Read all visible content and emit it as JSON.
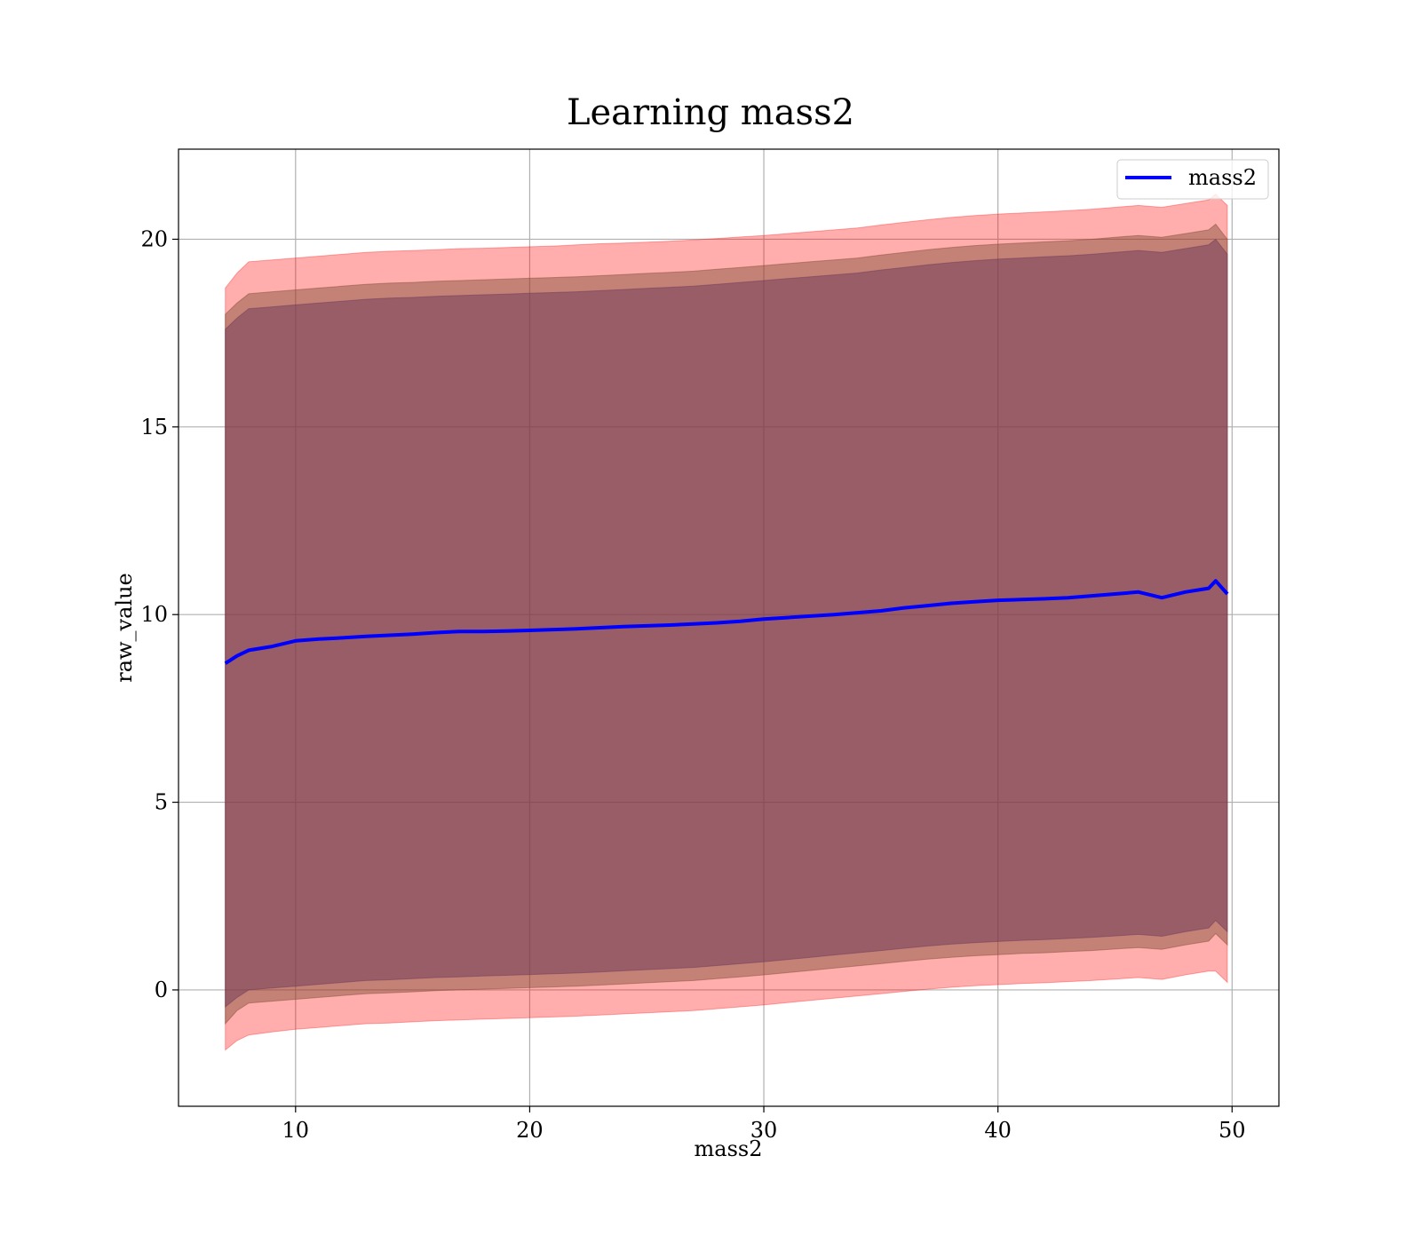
{
  "chart_data": {
    "type": "area",
    "title": "Learning mass2",
    "xlabel": "mass2",
    "ylabel": "raw_value",
    "xlim": [
      5,
      52
    ],
    "ylim": [
      -3.1,
      22.4
    ],
    "xticks": [
      10,
      20,
      30,
      40,
      50
    ],
    "yticks": [
      0,
      5,
      10,
      15,
      20
    ],
    "grid": true,
    "legend": {
      "position": "top-right",
      "entries": [
        "mass2"
      ]
    },
    "x": [
      7,
      7.5,
      8,
      9,
      10,
      11,
      12,
      13,
      14,
      15,
      16,
      17,
      18,
      19,
      20,
      21,
      22,
      23,
      24,
      25,
      26,
      27,
      28,
      29,
      30,
      31,
      32,
      33,
      34,
      35,
      36,
      37,
      38,
      39,
      40,
      41,
      42,
      43,
      44,
      45,
      46,
      47,
      48,
      49,
      49.3,
      49.8
    ],
    "series": [
      {
        "name": "mass2",
        "role": "line",
        "color": "#0000ff",
        "values": [
          8.7,
          8.9,
          9.05,
          9.15,
          9.3,
          9.35,
          9.38,
          9.42,
          9.45,
          9.48,
          9.52,
          9.55,
          9.55,
          9.56,
          9.58,
          9.6,
          9.62,
          9.65,
          9.68,
          9.7,
          9.72,
          9.75,
          9.78,
          9.82,
          9.88,
          9.92,
          9.96,
          10.0,
          10.05,
          10.1,
          10.18,
          10.24,
          10.3,
          10.34,
          10.38,
          10.4,
          10.42,
          10.45,
          10.5,
          10.55,
          10.6,
          10.45,
          10.6,
          10.7,
          10.9,
          10.55
        ]
      },
      {
        "role": "band",
        "color": "#ff0000",
        "opacity": 0.32,
        "upper": [
          18.7,
          19.1,
          19.4,
          19.45,
          19.5,
          19.55,
          19.6,
          19.65,
          19.68,
          19.7,
          19.72,
          19.75,
          19.76,
          19.78,
          19.8,
          19.82,
          19.85,
          19.88,
          19.9,
          19.92,
          19.95,
          19.98,
          20.02,
          20.06,
          20.1,
          20.15,
          20.2,
          20.25,
          20.3,
          20.38,
          20.45,
          20.52,
          20.58,
          20.63,
          20.67,
          20.7,
          20.73,
          20.76,
          20.8,
          20.85,
          20.9,
          20.85,
          20.95,
          21.05,
          21.2,
          20.9
        ],
        "lower": [
          -1.6,
          -1.35,
          -1.2,
          -1.12,
          -1.05,
          -1.0,
          -0.95,
          -0.9,
          -0.88,
          -0.85,
          -0.82,
          -0.8,
          -0.78,
          -0.76,
          -0.74,
          -0.72,
          -0.7,
          -0.67,
          -0.64,
          -0.61,
          -0.58,
          -0.55,
          -0.5,
          -0.45,
          -0.4,
          -0.34,
          -0.28,
          -0.22,
          -0.16,
          -0.1,
          -0.04,
          0.02,
          0.07,
          0.11,
          0.14,
          0.17,
          0.19,
          0.22,
          0.25,
          0.29,
          0.33,
          0.28,
          0.4,
          0.5,
          0.5,
          0.2
        ]
      },
      {
        "role": "band",
        "color": "#7d4c34",
        "opacity": 0.45,
        "upper": [
          18.0,
          18.3,
          18.55,
          18.6,
          18.65,
          18.7,
          18.75,
          18.8,
          18.83,
          18.85,
          18.88,
          18.9,
          18.92,
          18.94,
          18.96,
          18.98,
          19.0,
          19.03,
          19.06,
          19.09,
          19.12,
          19.15,
          19.2,
          19.25,
          19.3,
          19.35,
          19.4,
          19.45,
          19.5,
          19.58,
          19.65,
          19.72,
          19.78,
          19.83,
          19.87,
          19.9,
          19.93,
          19.96,
          20.0,
          20.05,
          20.1,
          20.05,
          20.15,
          20.25,
          20.4,
          20.0
        ],
        "lower": [
          -0.9,
          -0.55,
          -0.35,
          -0.3,
          -0.25,
          -0.2,
          -0.15,
          -0.1,
          -0.08,
          -0.05,
          -0.02,
          0.0,
          0.02,
          0.04,
          0.06,
          0.08,
          0.1,
          0.13,
          0.16,
          0.19,
          0.22,
          0.25,
          0.3,
          0.35,
          0.4,
          0.46,
          0.52,
          0.58,
          0.64,
          0.7,
          0.76,
          0.82,
          0.87,
          0.91,
          0.94,
          0.97,
          0.99,
          1.02,
          1.05,
          1.09,
          1.13,
          1.08,
          1.2,
          1.3,
          1.5,
          1.2
        ]
      },
      {
        "role": "band",
        "color": "#6e3a5a",
        "opacity": 0.5,
        "upper": [
          17.6,
          17.9,
          18.15,
          18.2,
          18.25,
          18.3,
          18.35,
          18.4,
          18.43,
          18.45,
          18.48,
          18.5,
          18.52,
          18.54,
          18.56,
          18.58,
          18.6,
          18.63,
          18.66,
          18.69,
          18.72,
          18.75,
          18.8,
          18.85,
          18.9,
          18.95,
          19.0,
          19.05,
          19.1,
          19.18,
          19.25,
          19.32,
          19.38,
          19.43,
          19.47,
          19.5,
          19.53,
          19.56,
          19.6,
          19.65,
          19.7,
          19.65,
          19.75,
          19.85,
          20.0,
          19.6
        ],
        "lower": [
          -0.45,
          -0.2,
          0.0,
          0.05,
          0.1,
          0.15,
          0.2,
          0.25,
          0.27,
          0.3,
          0.33,
          0.35,
          0.37,
          0.39,
          0.41,
          0.43,
          0.45,
          0.48,
          0.51,
          0.54,
          0.57,
          0.6,
          0.65,
          0.7,
          0.75,
          0.81,
          0.87,
          0.93,
          0.99,
          1.05,
          1.11,
          1.17,
          1.22,
          1.26,
          1.29,
          1.32,
          1.34,
          1.37,
          1.4,
          1.44,
          1.48,
          1.43,
          1.55,
          1.65,
          1.85,
          1.55
        ]
      }
    ]
  }
}
